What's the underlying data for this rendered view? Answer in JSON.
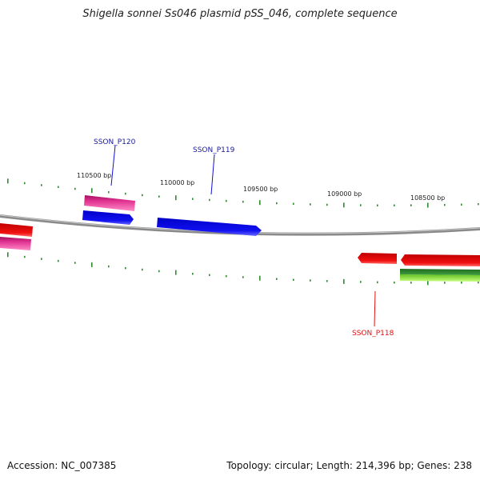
{
  "title": "Shigella sonnei Ss046 plasmid pSS_046, complete sequence",
  "footer": {
    "accession": "Accession: NC_007385",
    "summary": "Topology: circular; Length: 214,396 bp; Genes: 238"
  },
  "colors": {
    "backbone": "#8c8c8c",
    "tick": "#2e8b2e",
    "magenta_gene": "#e0308f",
    "blue_gene": "#1010f0",
    "red_gene": "#f01010",
    "green_gene": "#2a8a2a",
    "lime_gene": "#90e040",
    "blue_label": "#1a1a9a",
    "red_label": "#e01010"
  },
  "scale_labels": [
    "110500 bp",
    "110000 bp",
    "109500 bp",
    "109000 bp",
    "108500 bp"
  ],
  "gene_labels": [
    "SSON_P120",
    "SSON_P119",
    "SSON_P118"
  ]
}
